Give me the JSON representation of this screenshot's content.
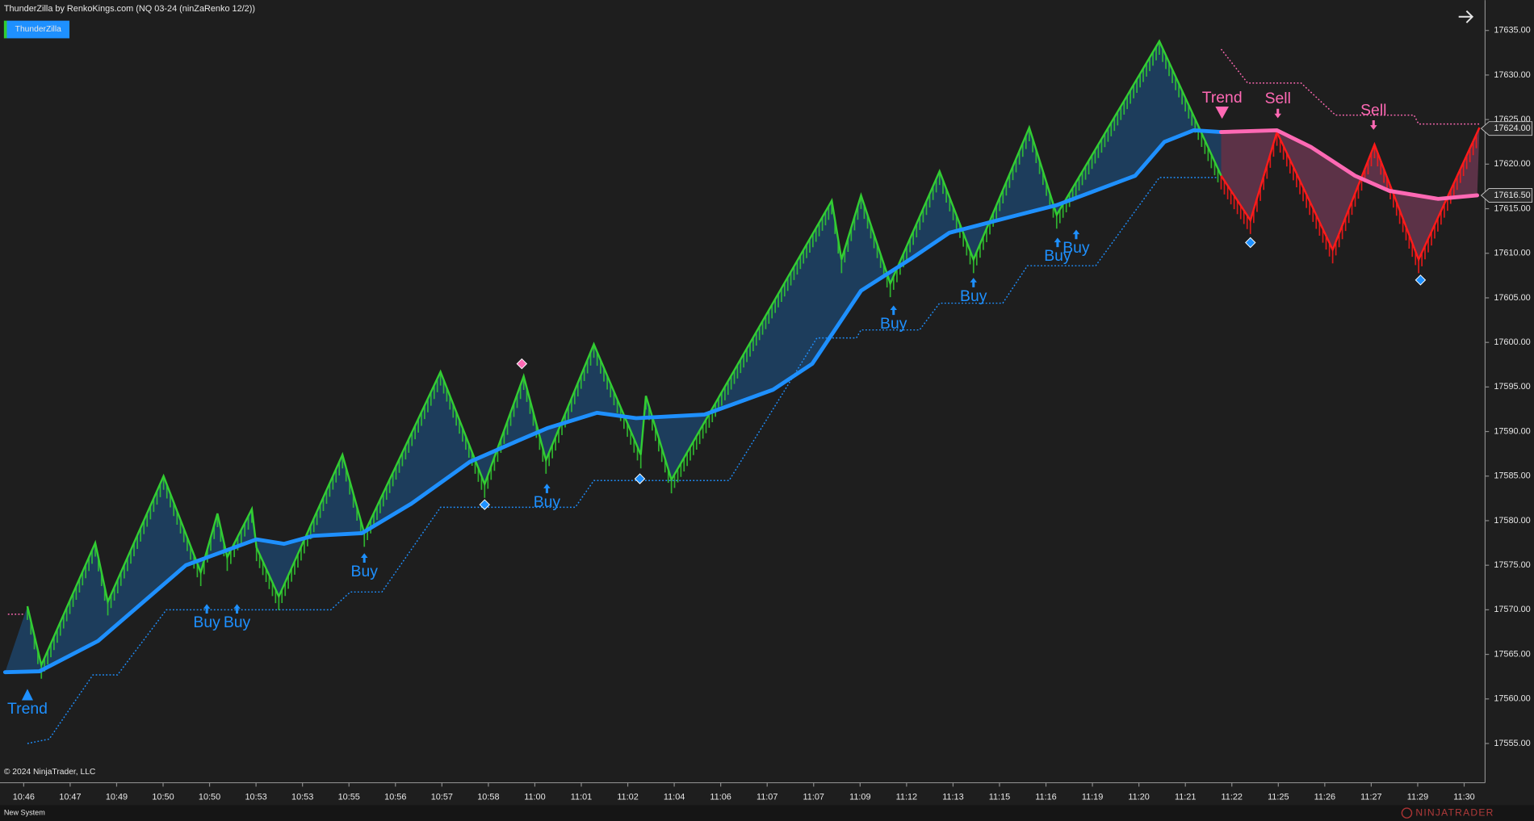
{
  "chart_data": {
    "type": "renko",
    "title": "ThunderZilla by RenkoKings.com (NQ 03-24 (ninZaRenko 12/2))",
    "indicator": "ThunderZilla",
    "copyright": "© 2024 NinjaTrader, LLC",
    "status": "New System",
    "watermark": "NINJATRADER",
    "xlim": [
      -0.51,
      31.45
    ],
    "xticks": [
      {
        "value": 0,
        "label": "10:46"
      },
      {
        "value": 1,
        "label": "10:47"
      },
      {
        "value": 2,
        "label": "10:49"
      },
      {
        "value": 3,
        "label": "10:50"
      },
      {
        "value": 4,
        "label": "10:50"
      },
      {
        "value": 5,
        "label": "10:53"
      },
      {
        "value": 6,
        "label": "10:53"
      },
      {
        "value": 7,
        "label": "10:55"
      },
      {
        "value": 8,
        "label": "10:56"
      },
      {
        "value": 9,
        "label": "10:57"
      },
      {
        "value": 10,
        "label": "10:58"
      },
      {
        "value": 11,
        "label": "11:00"
      },
      {
        "value": 12,
        "label": "11:01"
      },
      {
        "value": 13,
        "label": "11:02"
      },
      {
        "value": 14,
        "label": "11:04"
      },
      {
        "value": 15,
        "label": "11:06"
      },
      {
        "value": 16,
        "label": "11:07"
      },
      {
        "value": 17,
        "label": "11:07"
      },
      {
        "value": 18,
        "label": "11:09"
      },
      {
        "value": 19,
        "label": "11:12"
      },
      {
        "value": 20,
        "label": "11:13"
      },
      {
        "value": 21,
        "label": "11:15"
      },
      {
        "value": 22,
        "label": "11:16"
      },
      {
        "value": 23,
        "label": "11:19"
      },
      {
        "value": 24,
        "label": "11:20"
      },
      {
        "value": 25,
        "label": "11:21"
      },
      {
        "value": 26,
        "label": "11:22"
      },
      {
        "value": 27,
        "label": "11:25"
      },
      {
        "value": 28,
        "label": "11:26"
      },
      {
        "value": 29,
        "label": "11:27"
      },
      {
        "value": 30,
        "label": "11:29"
      },
      {
        "value": 31,
        "label": "11:30"
      }
    ],
    "ylim": [
      17550.6,
      17638.4
    ],
    "yticks": [
      {
        "value": 17555,
        "label": "17555.00"
      },
      {
        "value": 17560,
        "label": "17560.00"
      },
      {
        "value": 17565,
        "label": "17565.00"
      },
      {
        "value": 17570,
        "label": "17570.00"
      },
      {
        "value": 17575,
        "label": "17575.00"
      },
      {
        "value": 17580,
        "label": "17580.00"
      },
      {
        "value": 17585,
        "label": "17585.00"
      },
      {
        "value": 17590,
        "label": "17590.00"
      },
      {
        "value": 17595,
        "label": "17595.00"
      },
      {
        "value": 17600,
        "label": "17600.00"
      },
      {
        "value": 17605,
        "label": "17605.00"
      },
      {
        "value": 17610,
        "label": "17610.00"
      },
      {
        "value": 17615,
        "label": "17615.00"
      },
      {
        "value": 17620,
        "label": "17620.00"
      },
      {
        "value": 17625,
        "label": "17625.00"
      },
      {
        "value": 17630,
        "label": "17630.00"
      },
      {
        "value": 17635,
        "label": "17635.00"
      }
    ],
    "series": [
      {
        "style": "bars",
        "color": "#32cd32",
        "x": [
          0.08,
          0.38,
          1.54,
          1.81,
          3.01,
          3.81,
          4.17,
          4.38,
          4.91,
          5.01,
          5.49,
          6.86,
          7.33,
          8.97,
          9.92,
          10.76,
          11.24,
          12.27,
          13.28,
          13.39,
          13.94,
          17.39,
          17.6,
          18.02,
          18.65,
          19.71,
          20.44,
          21.64,
          22.23,
          24.44,
          25.77
        ],
        "values": [
          17570.4,
          17563.8,
          17577.5,
          17570.9,
          17585.0,
          17574.2,
          17580.8,
          17575.9,
          17581.3,
          17577.0,
          17571.5,
          17587.4,
          17578.6,
          17596.7,
          17584.1,
          17596.2,
          17586.8,
          17599.8,
          17587.4,
          17594.0,
          17584.6,
          17615.9,
          17609.3,
          17616.5,
          17606.6,
          17619.2,
          17609.3,
          17624.1,
          17614.3,
          17633.8,
          17618.7
        ]
      },
      {
        "style": "bars",
        "color": "#ff1a1a",
        "x": [
          25.77,
          26.4,
          26.97,
          28.17,
          29.07,
          30.02,
          31.33
        ],
        "values": [
          17618.7,
          17613.7,
          17623.6,
          17610.4,
          17622.2,
          17609.3,
          17624.1
        ]
      },
      {
        "style": "line",
        "color": "#1e90ff",
        "x": [
          -0.4,
          0.34,
          1.6,
          3.49,
          5.01,
          5.6,
          6.23,
          7.28,
          8.34,
          9.6,
          10.65,
          11.28,
          12.34,
          13.18,
          14.65,
          16.13,
          16.97,
          18.02,
          19.07,
          19.92,
          21.18,
          22.23,
          23.92,
          24.55,
          25.18,
          25.77
        ],
        "values": [
          17563.0,
          17563.1,
          17566.5,
          17575.0,
          17577.9,
          17577.4,
          17578.3,
          17578.6,
          17581.9,
          17586.6,
          17589.0,
          17590.4,
          17592.1,
          17591.5,
          17591.9,
          17594.7,
          17597.6,
          17605.8,
          17609.3,
          17612.3,
          17614.0,
          17615.4,
          17618.7,
          17622.5,
          17623.8,
          17623.6
        ]
      },
      {
        "style": "line",
        "color": "#ff69b4",
        "x": [
          25.77,
          26.97,
          27.71,
          28.65,
          29.39,
          30.44,
          31.28
        ],
        "values": [
          17623.6,
          17623.8,
          17621.9,
          17618.7,
          17617.0,
          17616.1,
          17616.5
        ]
      },
      {
        "style": "dotted",
        "color": "#1e90ff",
        "x": [
          0.08,
          0.55,
          1.49,
          2.02,
          3.07,
          6.61,
          7.03,
          7.71,
          8.97,
          11.87,
          12.27,
          15.18,
          17.07,
          17.92,
          18.02,
          19.28,
          19.71,
          21.07,
          21.6,
          23.07,
          24.44,
          25.71
        ],
        "values": [
          17555.0,
          17555.5,
          17562.7,
          17562.7,
          17570.0,
          17570.0,
          17572.0,
          17572.0,
          17581.5,
          17581.5,
          17584.5,
          17584.5,
          17600.5,
          17600.5,
          17601.4,
          17601.4,
          17604.4,
          17604.4,
          17608.6,
          17608.6,
          17618.5,
          17618.5
        ]
      },
      {
        "style": "dotted",
        "color": "#ff69b4",
        "x": [
          25.77,
          26.34,
          27.49,
          28.23,
          29.92,
          30.02,
          31.33
        ],
        "values": [
          17632.9,
          17629.1,
          17629.1,
          17625.5,
          17625.5,
          17624.5,
          17624.5
        ]
      },
      {
        "style": "dotted",
        "color": "#ff69b4",
        "x": [
          -0.34,
          0.0
        ],
        "values": [
          17569.5,
          17569.5
        ]
      }
    ],
    "signals": [
      {
        "text": "Trend",
        "x": 0.08,
        "price": 17561.0,
        "direction": "up",
        "marker": "triangle",
        "color": "#1e90ff"
      },
      {
        "text": "Buy",
        "x": 3.94,
        "price": 17570.6,
        "direction": "up",
        "marker": "arrow",
        "color": "#1e90ff"
      },
      {
        "text": "Buy",
        "x": 4.59,
        "price": 17570.6,
        "direction": "up",
        "marker": "arrow",
        "color": "#1e90ff"
      },
      {
        "text": "Buy",
        "x": 7.33,
        "price": 17576.3,
        "direction": "up",
        "marker": "arrow",
        "color": "#1e90ff"
      },
      {
        "text": "Buy",
        "x": 11.26,
        "price": 17584.1,
        "direction": "up",
        "marker": "arrow",
        "color": "#1e90ff"
      },
      {
        "text": "Buy",
        "x": 18.72,
        "price": 17604.1,
        "direction": "up",
        "marker": "arrow",
        "color": "#1e90ff"
      },
      {
        "text": "Buy",
        "x": 20.44,
        "price": 17607.2,
        "direction": "up",
        "marker": "arrow",
        "color": "#1e90ff"
      },
      {
        "text": "Buy",
        "x": 22.25,
        "price": 17611.7,
        "direction": "up",
        "marker": "arrow",
        "color": "#1e90ff"
      },
      {
        "text": "Buy",
        "x": 22.65,
        "price": 17612.6,
        "direction": "up",
        "marker": "arrow",
        "color": "#1e90ff"
      },
      {
        "text": "Trend",
        "x": 25.79,
        "price": 17625.2,
        "direction": "down",
        "marker": "triangle",
        "color": "#ff69b4"
      },
      {
        "text": "Sell",
        "x": 26.99,
        "price": 17625.2,
        "direction": "down",
        "marker": "arrow",
        "color": "#ff69b4"
      },
      {
        "text": "Sell",
        "x": 29.05,
        "price": 17623.9,
        "direction": "down",
        "marker": "arrow",
        "color": "#ff69b4"
      }
    ],
    "diamonds": [
      {
        "x": 9.92,
        "price": 17581.8,
        "color": "#1e90ff"
      },
      {
        "x": 10.72,
        "price": 17597.6,
        "color": "#ff69b4"
      },
      {
        "x": 13.26,
        "price": 17584.7,
        "color": "#1e90ff"
      },
      {
        "x": 26.4,
        "price": 17611.2,
        "color": "#1e90ff"
      },
      {
        "x": 30.06,
        "price": 17607.0,
        "color": "#1e90ff"
      }
    ],
    "price_markers": [
      {
        "value": 17624,
        "label": "17624.00"
      },
      {
        "value": 17616.5,
        "label": "17616.50"
      }
    ]
  }
}
